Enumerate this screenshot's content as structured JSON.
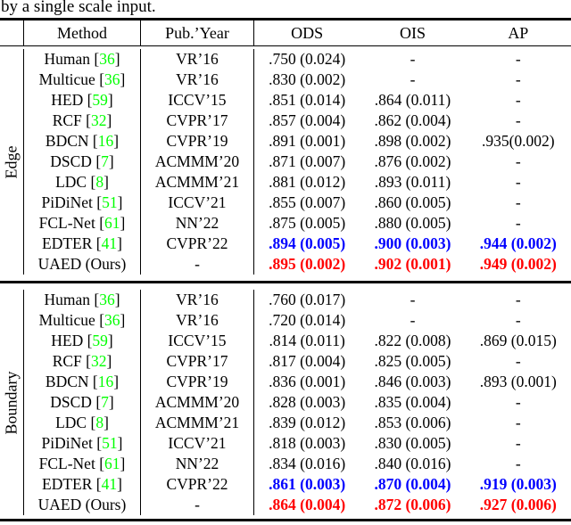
{
  "caption": "by a single scale input.",
  "header": {
    "method": "Method",
    "pub_year": "Pub.’Year",
    "ods": "ODS",
    "ois": "OIS",
    "ap": "AP"
  },
  "colors": {
    "citation_green": "#00ff00",
    "best_blue": "#0000ff",
    "ours_red": "#ff0000"
  },
  "sections": [
    {
      "label": "Edge",
      "rows": [
        {
          "method": "Human",
          "cite": "36",
          "pub": "VR’16",
          "ods": ".750 (0.024)",
          "ois": "-",
          "ap": "-",
          "highlight": null
        },
        {
          "method": "Multicue",
          "cite": "36",
          "pub": "VR’16",
          "ods": ".830 (0.002)",
          "ois": "-",
          "ap": "-",
          "highlight": null
        },
        {
          "method": "HED",
          "cite": "59",
          "pub": "ICCV’15",
          "ods": ".851 (0.014)",
          "ois": ".864 (0.011)",
          "ap": "-",
          "highlight": null
        },
        {
          "method": "RCF",
          "cite": "32",
          "pub": "CVPR’17",
          "ods": ".857 (0.004)",
          "ois": ".862 (0.004)",
          "ap": "-",
          "highlight": null
        },
        {
          "method": "BDCN",
          "cite": "16",
          "pub": "CVPR’19",
          "ods": ".891 (0.001)",
          "ois": ".898 (0.002)",
          "ap": ".935(0.002)",
          "highlight": null
        },
        {
          "method": "DSCD",
          "cite": "7",
          "pub": "ACMMM’20",
          "ods": ".871 (0.007)",
          "ois": ".876 (0.002)",
          "ap": "-",
          "highlight": null
        },
        {
          "method": "LDC",
          "cite": "8",
          "pub": "ACMMM’21",
          "ods": ".881 (0.012)",
          "ois": ".893 (0.011)",
          "ap": "-",
          "highlight": null
        },
        {
          "method": "PiDiNet",
          "cite": "51",
          "pub": "ICCV’21",
          "ods": ".855 (0.007)",
          "ois": ".860 (0.005)",
          "ap": "-",
          "highlight": null
        },
        {
          "method": "FCL-Net",
          "cite": "61",
          "pub": "NN’22",
          "ods": ".875 (0.005)",
          "ois": ".880 (0.005)",
          "ap": "-",
          "highlight": null
        },
        {
          "method": "EDTER",
          "cite": "41",
          "pub": "CVPR’22",
          "ods": ".894 (0.005)",
          "ois": ".900 (0.003)",
          "ap": ".944 (0.002)",
          "highlight": "blue"
        },
        {
          "method": "UAED (Ours)",
          "cite": null,
          "pub": "-",
          "ods": ".895 (0.002)",
          "ois": ".902 (0.001)",
          "ap": ".949 (0.002)",
          "highlight": "red"
        }
      ]
    },
    {
      "label": "Boundary",
      "rows": [
        {
          "method": "Human",
          "cite": "36",
          "pub": "VR’16",
          "ods": ".760 (0.017)",
          "ois": "-",
          "ap": "-",
          "highlight": null
        },
        {
          "method": "Multicue",
          "cite": "36",
          "pub": "VR’16",
          "ods": ".720 (0.014)",
          "ois": "-",
          "ap": "-",
          "highlight": null
        },
        {
          "method": "HED",
          "cite": "59",
          "pub": "ICCV’15",
          "ods": ".814 (0.011)",
          "ois": ".822 (0.008)",
          "ap": ".869 (0.015)",
          "highlight": null
        },
        {
          "method": "RCF",
          "cite": "32",
          "pub": "CVPR’17",
          "ods": ".817 (0.004)",
          "ois": ".825 (0.005)",
          "ap": "-",
          "highlight": null
        },
        {
          "method": "BDCN",
          "cite": "16",
          "pub": "CVPR’19",
          "ods": ".836 (0.001)",
          "ois": ".846 (0.003)",
          "ap": ".893 (0.001)",
          "highlight": null
        },
        {
          "method": "DSCD",
          "cite": "7",
          "pub": "ACMMM’20",
          "ods": ".828 (0.003)",
          "ois": ".835 (0.004)",
          "ap": "-",
          "highlight": null
        },
        {
          "method": "LDC",
          "cite": "8",
          "pub": "ACMMM’21",
          "ods": ".839 (0.012)",
          "ois": ".853 (0.006)",
          "ap": "-",
          "highlight": null
        },
        {
          "method": "PiDiNet",
          "cite": "51",
          "pub": "ICCV’21",
          "ods": ".818 (0.003)",
          "ois": ".830 (0.005)",
          "ap": "-",
          "highlight": null
        },
        {
          "method": "FCL-Net",
          "cite": "61",
          "pub": "NN’22",
          "ods": ".834 (0.016)",
          "ois": ".840 (0.016)",
          "ap": "-",
          "highlight": null
        },
        {
          "method": "EDTER",
          "cite": "41",
          "pub": "CVPR’22",
          "ods": ".861 (0.003)",
          "ois": ".870 (0.004)",
          "ap": ".919 (0.003)",
          "highlight": "blue"
        },
        {
          "method": "UAED (Ours)",
          "cite": null,
          "pub": "-",
          "ods": ".864 (0.004)",
          "ois": ".872 (0.006)",
          "ap": ".927 (0.006)",
          "highlight": "red"
        }
      ]
    }
  ]
}
